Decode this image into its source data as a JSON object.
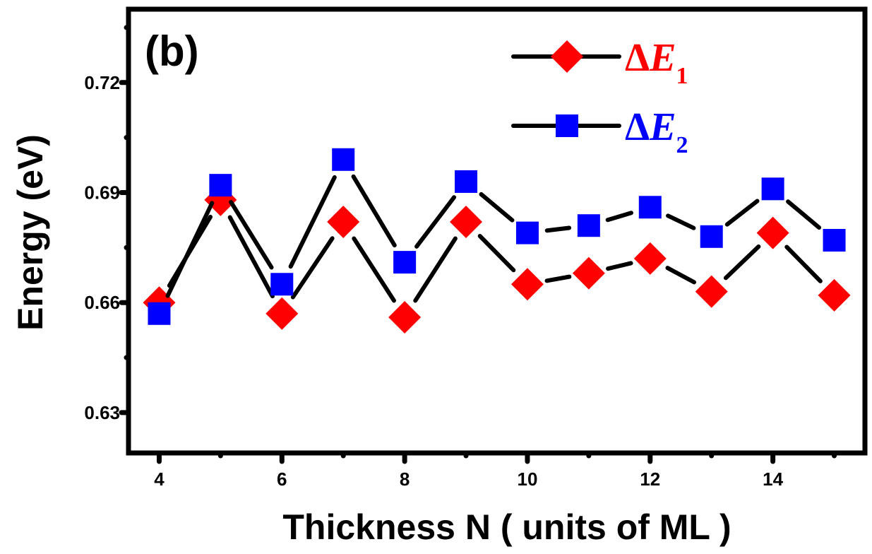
{
  "chart_data": {
    "type": "line",
    "panel_label": "(b)",
    "xlabel": "Thickness N ( units of ML )",
    "ylabel": "Energy (eV)",
    "xlim": [
      3.5,
      15.5
    ],
    "ylim": [
      0.619,
      0.74
    ],
    "xticks": [
      4,
      6,
      8,
      10,
      12,
      14
    ],
    "xticks_minor": [
      5,
      7,
      9,
      11,
      13,
      15
    ],
    "yticks": [
      0.63,
      0.66,
      0.69,
      0.72
    ],
    "yticks_labels": [
      "0.63",
      "0.66",
      "0.69",
      "0.72"
    ],
    "yticks_minor": [
      0.645,
      0.675,
      0.705,
      0.735
    ],
    "legend_position": "top-right",
    "x": [
      4,
      5,
      6,
      7,
      8,
      9,
      10,
      11,
      12,
      13,
      14,
      15
    ],
    "series": [
      {
        "name_prefix": "ΔE",
        "name_sub": "1",
        "marker": "diamond",
        "color": "#ff0000",
        "line_color": "#000000",
        "values": [
          0.66,
          0.688,
          0.657,
          0.682,
          0.656,
          0.682,
          0.665,
          0.668,
          0.672,
          0.663,
          0.679,
          0.662
        ]
      },
      {
        "name_prefix": "ΔE",
        "name_sub": "2",
        "marker": "square",
        "color": "#0000ff",
        "line_color": "#000000",
        "values": [
          0.657,
          0.692,
          0.665,
          0.699,
          0.671,
          0.693,
          0.679,
          0.681,
          0.686,
          0.678,
          0.691,
          0.677
        ]
      }
    ]
  }
}
